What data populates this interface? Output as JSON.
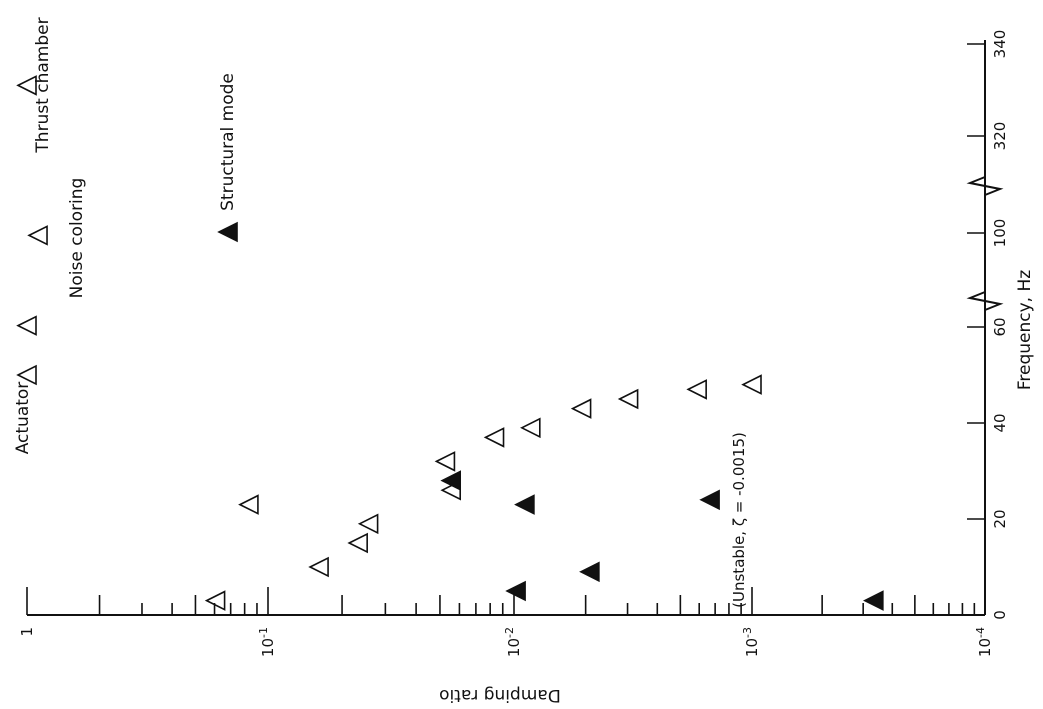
{
  "chart_data": {
    "type": "scatter",
    "orientation": "rotated",
    "xlabel": "Frequency, Hz",
    "ylabel": "Damping ratio",
    "x_ticks": [
      "0",
      "20",
      "40",
      "60",
      "100",
      "320",
      "340"
    ],
    "x_axis_breaks": [
      "between 60 and 100",
      "between 100 and 320"
    ],
    "y_scale": "log",
    "y_ticks": [
      "1",
      "10^-1",
      "10^-2",
      "10^-3",
      "10^-4"
    ],
    "ylim": [
      0.0001,
      1
    ],
    "annotation": "(Unstable, ζ = -0.0015)",
    "legend_text": "Structural mode",
    "series": [
      {
        "name": "Actuator",
        "marker": "open-triangle",
        "points": [
          {
            "x": 50,
            "y": 1.0
          },
          {
            "x": 61,
            "y": 1.0
          }
        ]
      },
      {
        "name": "Noise coloring",
        "marker": "open-triangle",
        "points": [
          {
            "x": 3,
            "y": 0.165
          },
          {
            "x": 10,
            "y": 0.062
          },
          {
            "x": 15,
            "y": 0.043
          },
          {
            "x": 19,
            "y": 0.039
          },
          {
            "x": 23,
            "y": 0.12
          },
          {
            "x": 26,
            "y": 0.018
          },
          {
            "x": 32,
            "y": 0.019
          },
          {
            "x": 37,
            "y": 0.012
          },
          {
            "x": 39,
            "y": 0.0085
          },
          {
            "x": 43,
            "y": 0.0052
          },
          {
            "x": 45,
            "y": 0.0033
          },
          {
            "x": 47,
            "y": 0.0017
          },
          {
            "x": 48,
            "y": 0.001
          },
          {
            "x": 99,
            "y": 0.9
          }
        ]
      },
      {
        "name": "Thrust chamber",
        "marker": "open-triangle",
        "points": [
          {
            "x": 331,
            "y": 1.0
          }
        ]
      },
      {
        "name": "Structural mode",
        "marker": "filled-triangle",
        "points": [
          {
            "x": 3,
            "y": 0.0003
          },
          {
            "x": 5,
            "y": 0.0098
          },
          {
            "x": 9,
            "y": 0.0048
          },
          {
            "x": 23,
            "y": 0.009
          },
          {
            "x": 24,
            "y": 0.0015
          },
          {
            "x": 28,
            "y": 0.018
          }
        ]
      }
    ]
  }
}
